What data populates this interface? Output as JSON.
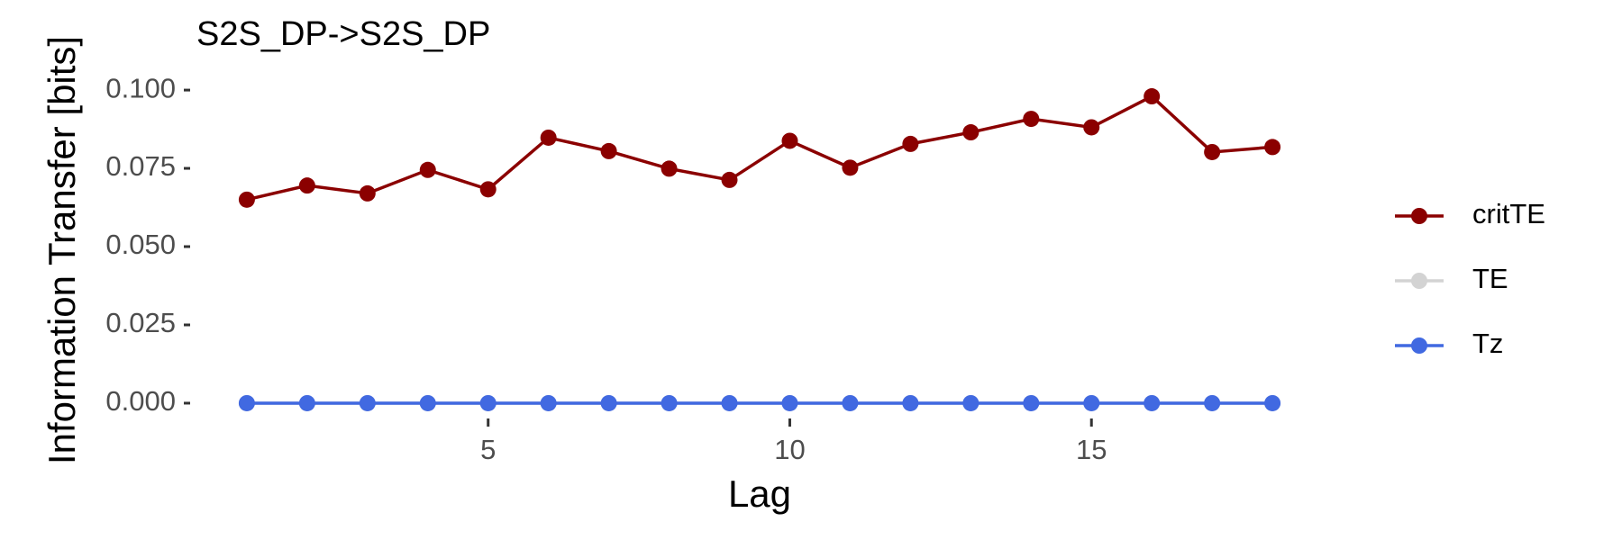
{
  "chart_data": {
    "type": "line",
    "title": "S2S_DP->S2S_DP",
    "x_label": "Lag",
    "y_label": "Information Transfer [bits]",
    "x": [
      1,
      2,
      3,
      4,
      5,
      6,
      7,
      8,
      9,
      10,
      11,
      12,
      13,
      14,
      15,
      16,
      17,
      18
    ],
    "series": [
      {
        "name": "critTE",
        "color": "#8b0000",
        "values": [
          0.065,
          0.0695,
          0.067,
          0.0745,
          0.0683,
          0.0848,
          0.0805,
          0.0749,
          0.0713,
          0.0838,
          0.0752,
          0.0828,
          0.0865,
          0.0908,
          0.0881,
          0.098,
          0.0802,
          0.0818
        ]
      },
      {
        "name": "TE",
        "color": "#d3d3d3",
        "values": [
          0,
          0,
          0,
          0,
          0,
          0,
          0,
          0,
          0,
          0,
          0,
          0,
          0,
          0,
          0,
          0,
          0,
          0
        ]
      },
      {
        "name": "Tz",
        "color": "#4169e1",
        "values": [
          0,
          0,
          0,
          0,
          0,
          0,
          0,
          0,
          0,
          0,
          0,
          0,
          0,
          0,
          0,
          0,
          0,
          0
        ]
      }
    ],
    "xlim": [
      0.15,
      18.85
    ],
    "xticks": [
      5,
      10,
      15
    ],
    "ylim": [
      -0.0049,
      0.1029
    ],
    "yticks": [
      {
        "value": 0,
        "label": "0.000"
      },
      {
        "value": 0.025,
        "label": "0.025"
      },
      {
        "value": 0.05,
        "label": "0.050"
      },
      {
        "value": 0.075,
        "label": "0.075"
      },
      {
        "value": 0.1,
        "label": "0.100"
      }
    ],
    "grid": false,
    "legend": "right"
  }
}
